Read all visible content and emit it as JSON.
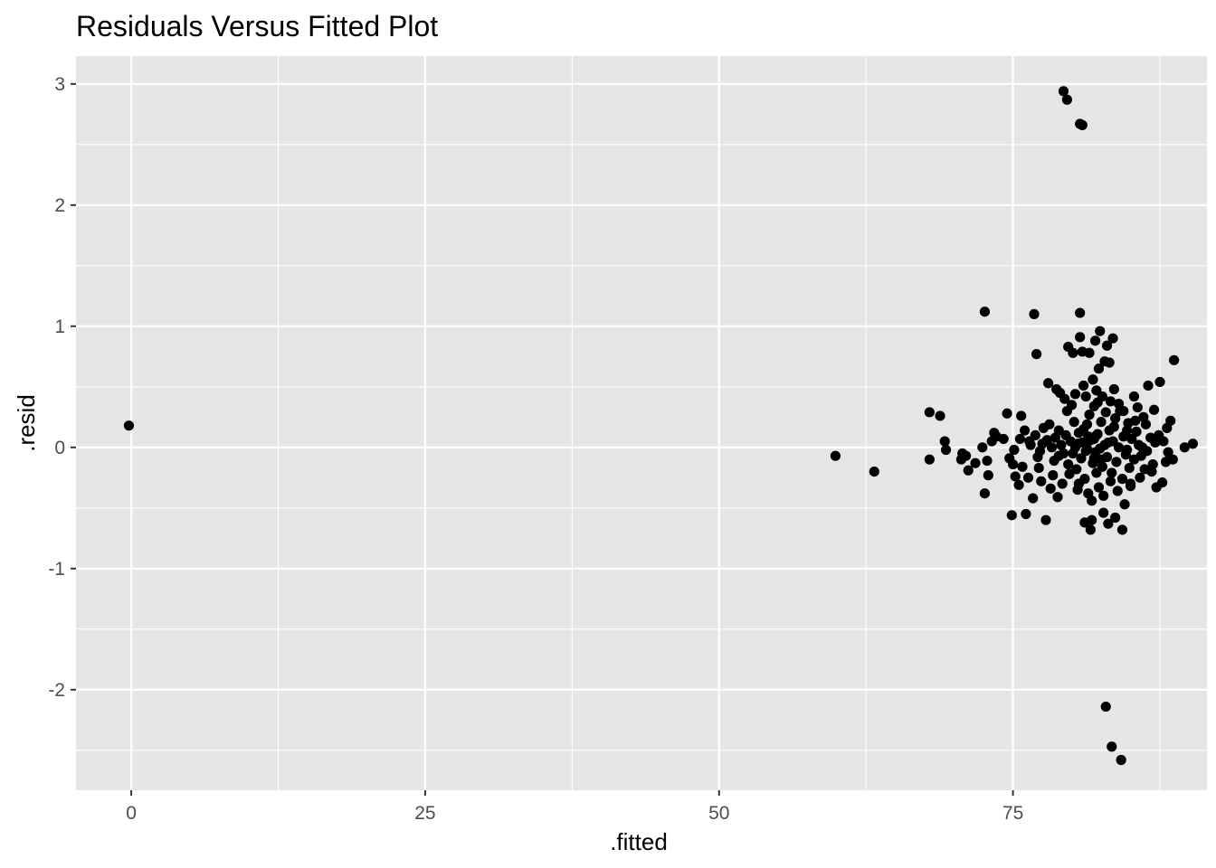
{
  "chart_data": {
    "type": "scatter",
    "title": "Residuals Versus Fitted Plot",
    "xlabel": ".fitted",
    "ylabel": ".resid",
    "xlim": [
      -4.7,
      91.5
    ],
    "ylim": [
      -2.83,
      3.23
    ],
    "x_ticks": [
      0,
      25,
      50,
      75
    ],
    "x_tick_labels": [
      "0",
      "25",
      "50",
      "75"
    ],
    "y_ticks": [
      -2,
      -1,
      0,
      1,
      2,
      3
    ],
    "y_tick_labels": [
      "-2",
      "-1",
      "0",
      "1",
      "2",
      "3"
    ],
    "grid": true,
    "background_color": "#e5e5e5",
    "grid_color": "#ffffff",
    "point_color": "#000000",
    "legend": "none",
    "series": [
      {
        "points": [
          [
            -0.2,
            0.18
          ],
          [
            59.9,
            -0.07
          ],
          [
            63.2,
            -0.2
          ],
          [
            67.9,
            0.29
          ],
          [
            67.9,
            -0.1
          ],
          [
            68.8,
            0.26
          ],
          [
            69.2,
            0.05
          ],
          [
            69.3,
            -0.02
          ],
          [
            70.6,
            -0.1
          ],
          [
            70.7,
            -0.05
          ],
          [
            71.0,
            -0.07
          ],
          [
            71.2,
            -0.19
          ],
          [
            71.8,
            -0.13
          ],
          [
            72.4,
            0.0
          ],
          [
            72.6,
            1.12
          ],
          [
            72.6,
            -0.38
          ],
          [
            72.8,
            -0.11
          ],
          [
            72.9,
            -0.23
          ],
          [
            73.2,
            0.05
          ],
          [
            73.4,
            0.12
          ],
          [
            73.6,
            0.09
          ],
          [
            74.2,
            0.07
          ],
          [
            74.5,
            0.28
          ],
          [
            74.7,
            -0.09
          ],
          [
            74.9,
            -0.56
          ],
          [
            75.0,
            -0.14
          ],
          [
            75.1,
            -0.02
          ],
          [
            75.2,
            -0.24
          ],
          [
            75.5,
            -0.31
          ],
          [
            75.6,
            0.07
          ],
          [
            75.7,
            0.26
          ],
          [
            75.8,
            -0.16
          ],
          [
            76.0,
            0.14
          ],
          [
            76.1,
            -0.55
          ],
          [
            76.3,
            -0.25
          ],
          [
            76.5,
            0.02
          ],
          [
            76.7,
            -0.42
          ],
          [
            76.8,
            1.1
          ],
          [
            77.0,
            0.77
          ],
          [
            77.2,
            -0.17
          ],
          [
            77.4,
            -0.28
          ],
          [
            77.6,
            0.16
          ],
          [
            77.8,
            -0.6
          ],
          [
            77.9,
            0.06
          ],
          [
            78.0,
            0.53
          ],
          [
            78.2,
            -0.34
          ],
          [
            78.5,
            -0.11
          ],
          [
            78.7,
            0.48
          ],
          [
            78.8,
            -0.41
          ],
          [
            78.9,
            0.14
          ],
          [
            79.0,
            0.45
          ],
          [
            79.3,
            -0.05
          ],
          [
            79.3,
            2.94
          ],
          [
            79.4,
            0.4
          ],
          [
            79.6,
            2.87
          ],
          [
            79.7,
            0.83
          ],
          [
            79.8,
            -0.22
          ],
          [
            80.1,
            0.78
          ],
          [
            80.3,
            0.44
          ],
          [
            80.5,
            -0.35
          ],
          [
            80.6,
            0.12
          ],
          [
            80.7,
            0.91
          ],
          [
            80.7,
            1.11
          ],
          [
            80.7,
            2.67
          ],
          [
            80.9,
            2.66
          ],
          [
            80.9,
            0.79
          ],
          [
            81.0,
            0.51
          ],
          [
            81.1,
            -0.62
          ],
          [
            81.2,
            -0.03
          ],
          [
            81.3,
            0.19
          ],
          [
            81.4,
            -0.38
          ],
          [
            81.5,
            0.78
          ],
          [
            81.6,
            -0.68
          ],
          [
            81.7,
            -0.6
          ],
          [
            81.8,
            0.56
          ],
          [
            81.9,
            0.07
          ],
          [
            82.0,
            0.88
          ],
          [
            82.1,
            -0.21
          ],
          [
            82.2,
            0.37
          ],
          [
            82.3,
            0.65
          ],
          [
            82.4,
            0.96
          ],
          [
            82.5,
            -0.1
          ],
          [
            82.6,
            0.42
          ],
          [
            82.7,
            -0.54
          ],
          [
            82.8,
            0.71
          ],
          [
            82.9,
            -2.14
          ],
          [
            83.0,
            0.84
          ],
          [
            83.1,
            -0.63
          ],
          [
            83.2,
            0.7
          ],
          [
            83.3,
            -0.28
          ],
          [
            83.4,
            -2.47
          ],
          [
            83.5,
            0.9
          ],
          [
            83.6,
            0.48
          ],
          [
            83.7,
            -0.58
          ],
          [
            84.0,
            0.36
          ],
          [
            84.2,
            -2.58
          ],
          [
            84.3,
            -0.68
          ],
          [
            84.5,
            -0.47
          ],
          [
            84.7,
            0.14
          ],
          [
            85.0,
            -0.3
          ],
          [
            85.3,
            0.42
          ],
          [
            85.6,
            0.33
          ],
          [
            85.8,
            -0.25
          ],
          [
            86.0,
            0.0
          ],
          [
            86.3,
            0.19
          ],
          [
            86.5,
            0.51
          ],
          [
            86.8,
            -0.2
          ],
          [
            87.0,
            0.31
          ],
          [
            87.2,
            -0.33
          ],
          [
            87.4,
            0.1
          ],
          [
            87.5,
            0.54
          ],
          [
            87.7,
            -0.29
          ],
          [
            87.8,
            0.05
          ],
          [
            88.0,
            -0.12
          ],
          [
            88.1,
            0.16
          ],
          [
            88.2,
            -0.04
          ],
          [
            88.4,
            0.22
          ],
          [
            88.6,
            -0.1
          ],
          [
            88.7,
            0.72
          ],
          [
            89.6,
            0.0
          ],
          [
            90.3,
            0.03
          ],
          [
            78.3,
            0.0
          ],
          [
            78.6,
            0.08
          ],
          [
            78.9,
            -0.07
          ],
          [
            79.1,
            0.02
          ],
          [
            79.5,
            0.1
          ],
          [
            79.7,
            -0.14
          ],
          [
            79.9,
            0.05
          ],
          [
            80.1,
            -0.05
          ],
          [
            80.2,
            0.21
          ],
          [
            80.4,
            -0.18
          ],
          [
            80.5,
            0.03
          ],
          [
            80.8,
            -0.09
          ],
          [
            81.0,
            0.15
          ],
          [
            81.1,
            -0.26
          ],
          [
            81.3,
            -0.01
          ],
          [
            81.5,
            0.27
          ],
          [
            81.6,
            0.06
          ],
          [
            81.8,
            -0.13
          ],
          [
            81.9,
            0.34
          ],
          [
            82.0,
            -0.04
          ],
          [
            82.2,
            0.11
          ],
          [
            82.3,
            -0.33
          ],
          [
            82.5,
            0.21
          ],
          [
            82.6,
            -0.16
          ],
          [
            82.8,
            0.02
          ],
          [
            82.9,
            0.29
          ],
          [
            83.0,
            -0.08
          ],
          [
            83.2,
            0.14
          ],
          [
            83.4,
            -0.21
          ],
          [
            83.5,
            0.05
          ],
          [
            83.7,
            0.24
          ],
          [
            83.8,
            -0.12
          ],
          [
            84.0,
            0.0
          ],
          [
            84.1,
            0.3
          ],
          [
            84.3,
            -0.26
          ],
          [
            84.4,
            0.09
          ],
          [
            84.6,
            -0.06
          ],
          [
            84.8,
            0.2
          ],
          [
            84.9,
            -0.17
          ],
          [
            85.1,
            0.07
          ],
          [
            85.3,
            -0.1
          ],
          [
            85.5,
            0.13
          ],
          [
            85.7,
            0.02
          ],
          [
            85.9,
            -0.07
          ],
          [
            86.1,
            0.25
          ],
          [
            86.4,
            -0.03
          ],
          [
            86.7,
            0.08
          ],
          [
            86.9,
            -0.14
          ],
          [
            87.1,
            0.04
          ],
          [
            80.0,
            0.35
          ],
          [
            80.6,
            -0.3
          ],
          [
            81.2,
            0.42
          ],
          [
            81.7,
            -0.44
          ],
          [
            82.1,
            0.47
          ],
          [
            82.7,
            -0.4
          ],
          [
            83.3,
            0.38
          ],
          [
            83.9,
            -0.36
          ],
          [
            84.4,
            0.3
          ],
          [
            85.0,
            -0.32
          ],
          [
            79.2,
            -0.3
          ],
          [
            79.6,
            0.3
          ],
          [
            77.5,
            0.03
          ],
          [
            77.1,
            -0.08
          ],
          [
            76.4,
            0.05
          ],
          [
            76.9,
            0.1
          ],
          [
            77.3,
            -0.03
          ],
          [
            78.1,
            0.19
          ],
          [
            78.4,
            -0.23
          ],
          [
            80.3,
            0.0
          ],
          [
            81.4,
            0.09
          ],
          [
            82.4,
            -0.01
          ],
          [
            83.6,
            0.17
          ],
          [
            84.7,
            -0.02
          ],
          [
            85.4,
            0.22
          ],
          [
            86.2,
            -0.18
          ],
          [
            82.0,
            0.09
          ],
          [
            81.9,
            -0.09
          ],
          [
            83.1,
            0.04
          ],
          [
            80.9,
            0.04
          ]
        ]
      }
    ]
  }
}
